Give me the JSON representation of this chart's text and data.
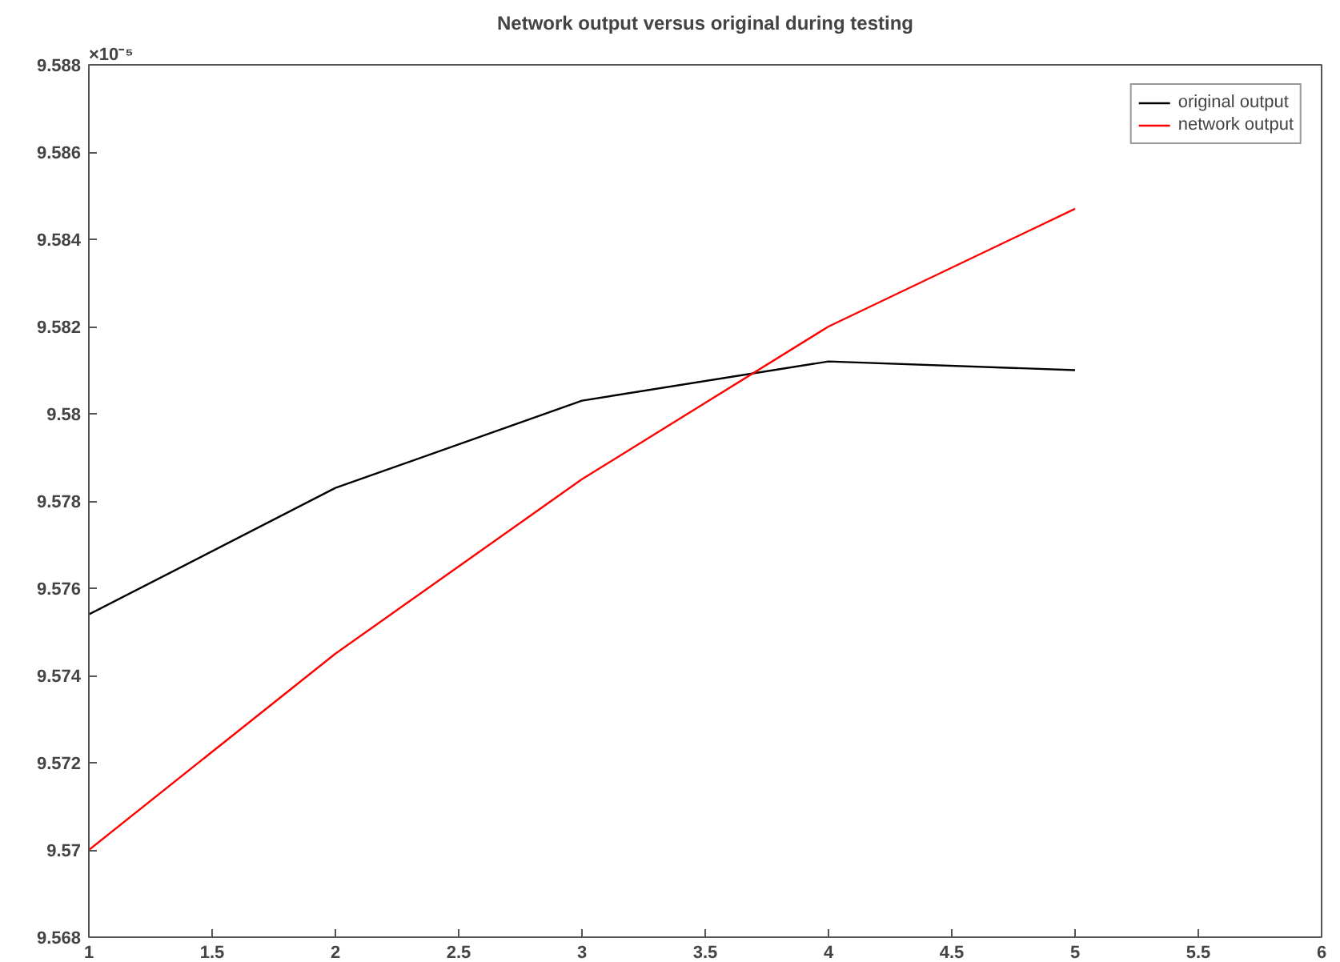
{
  "chart_data": {
    "type": "line",
    "title": "Network output versus original during testing",
    "x": [
      1,
      2,
      3,
      4,
      5
    ],
    "series": [
      {
        "name": "original output",
        "color": "#000000",
        "values": [
          9.5754,
          9.5783,
          9.5803,
          9.5812,
          9.581
        ]
      },
      {
        "name": "network output",
        "color": "#ff0000",
        "values": [
          9.57,
          9.5745,
          9.5785,
          9.582,
          9.5847
        ]
      }
    ],
    "xlim": [
      1,
      6
    ],
    "xticks": [
      1,
      1.5,
      2,
      2.5,
      3,
      3.5,
      4,
      4.5,
      5,
      5.5,
      6
    ],
    "ylim": [
      9.568,
      9.588
    ],
    "yticks": [
      9.568,
      9.57,
      9.572,
      9.574,
      9.576,
      9.578,
      9.58,
      9.582,
      9.584,
      9.586,
      9.588
    ],
    "annotations": [
      "×10⁻⁵"
    ],
    "grid": false,
    "legend": "top right",
    "marker": "none",
    "line_style": "solid"
  }
}
